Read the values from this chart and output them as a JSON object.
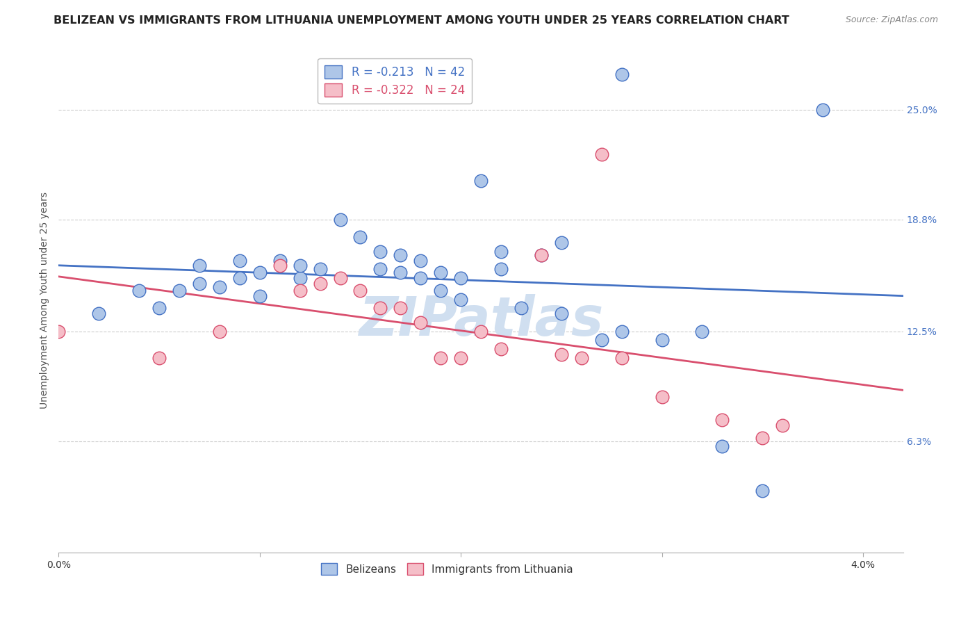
{
  "title": "BELIZEAN VS IMMIGRANTS FROM LITHUANIA UNEMPLOYMENT AMONG YOUTH UNDER 25 YEARS CORRELATION CHART",
  "source": "Source: ZipAtlas.com",
  "ylabel": "Unemployment Among Youth under 25 years",
  "legend_blue_R": "-0.213",
  "legend_blue_N": "42",
  "legend_pink_R": "-0.322",
  "legend_pink_N": "24",
  "legend_blue_label": "Belizeans",
  "legend_pink_label": "Immigrants from Lithuania",
  "blue_color": "#aec6e8",
  "blue_line_color": "#4472c4",
  "pink_color": "#f5bec8",
  "pink_line_color": "#d94f6e",
  "background_color": "#ffffff",
  "grid_color": "#cccccc",
  "blue_scatter_x": [
    0.002,
    0.004,
    0.005,
    0.006,
    0.007,
    0.007,
    0.008,
    0.009,
    0.009,
    0.01,
    0.01,
    0.011,
    0.012,
    0.012,
    0.013,
    0.014,
    0.015,
    0.016,
    0.016,
    0.017,
    0.017,
    0.018,
    0.018,
    0.019,
    0.019,
    0.02,
    0.02,
    0.021,
    0.022,
    0.022,
    0.023,
    0.024,
    0.025,
    0.025,
    0.027,
    0.028,
    0.028,
    0.03,
    0.032,
    0.033,
    0.035,
    0.038
  ],
  "blue_scatter_y": [
    0.135,
    0.148,
    0.138,
    0.148,
    0.152,
    0.162,
    0.15,
    0.155,
    0.165,
    0.145,
    0.158,
    0.165,
    0.155,
    0.162,
    0.16,
    0.188,
    0.178,
    0.16,
    0.17,
    0.158,
    0.168,
    0.155,
    0.165,
    0.148,
    0.158,
    0.143,
    0.155,
    0.21,
    0.16,
    0.17,
    0.138,
    0.168,
    0.175,
    0.135,
    0.12,
    0.125,
    0.27,
    0.12,
    0.125,
    0.06,
    0.035,
    0.25
  ],
  "pink_scatter_x": [
    0.0,
    0.005,
    0.008,
    0.011,
    0.012,
    0.013,
    0.014,
    0.015,
    0.016,
    0.017,
    0.018,
    0.019,
    0.02,
    0.021,
    0.022,
    0.024,
    0.025,
    0.026,
    0.027,
    0.028,
    0.03,
    0.033,
    0.035,
    0.036
  ],
  "pink_scatter_y": [
    0.125,
    0.11,
    0.125,
    0.162,
    0.148,
    0.152,
    0.155,
    0.148,
    0.138,
    0.138,
    0.13,
    0.11,
    0.11,
    0.125,
    0.115,
    0.168,
    0.112,
    0.11,
    0.225,
    0.11,
    0.088,
    0.075,
    0.065,
    0.072
  ],
  "xlim": [
    0.0,
    0.042
  ],
  "ylim": [
    0.0,
    0.285
  ],
  "ytick_vals": [
    0.063,
    0.125,
    0.188,
    0.25
  ],
  "ytick_labels": [
    "6.3%",
    "12.5%",
    "18.8%",
    "25.0%"
  ],
  "xtick_positions": [
    0.0,
    0.01,
    0.02,
    0.03,
    0.04
  ],
  "xtick_labels": [
    "0.0%",
    "",
    "",
    "",
    "4.0%"
  ],
  "watermark": "ZIPatlas",
  "watermark_color": "#d0dff0",
  "title_fontsize": 11.5,
  "axis_label_fontsize": 10,
  "tick_fontsize": 10,
  "right_ytick_color": "#4472c4"
}
